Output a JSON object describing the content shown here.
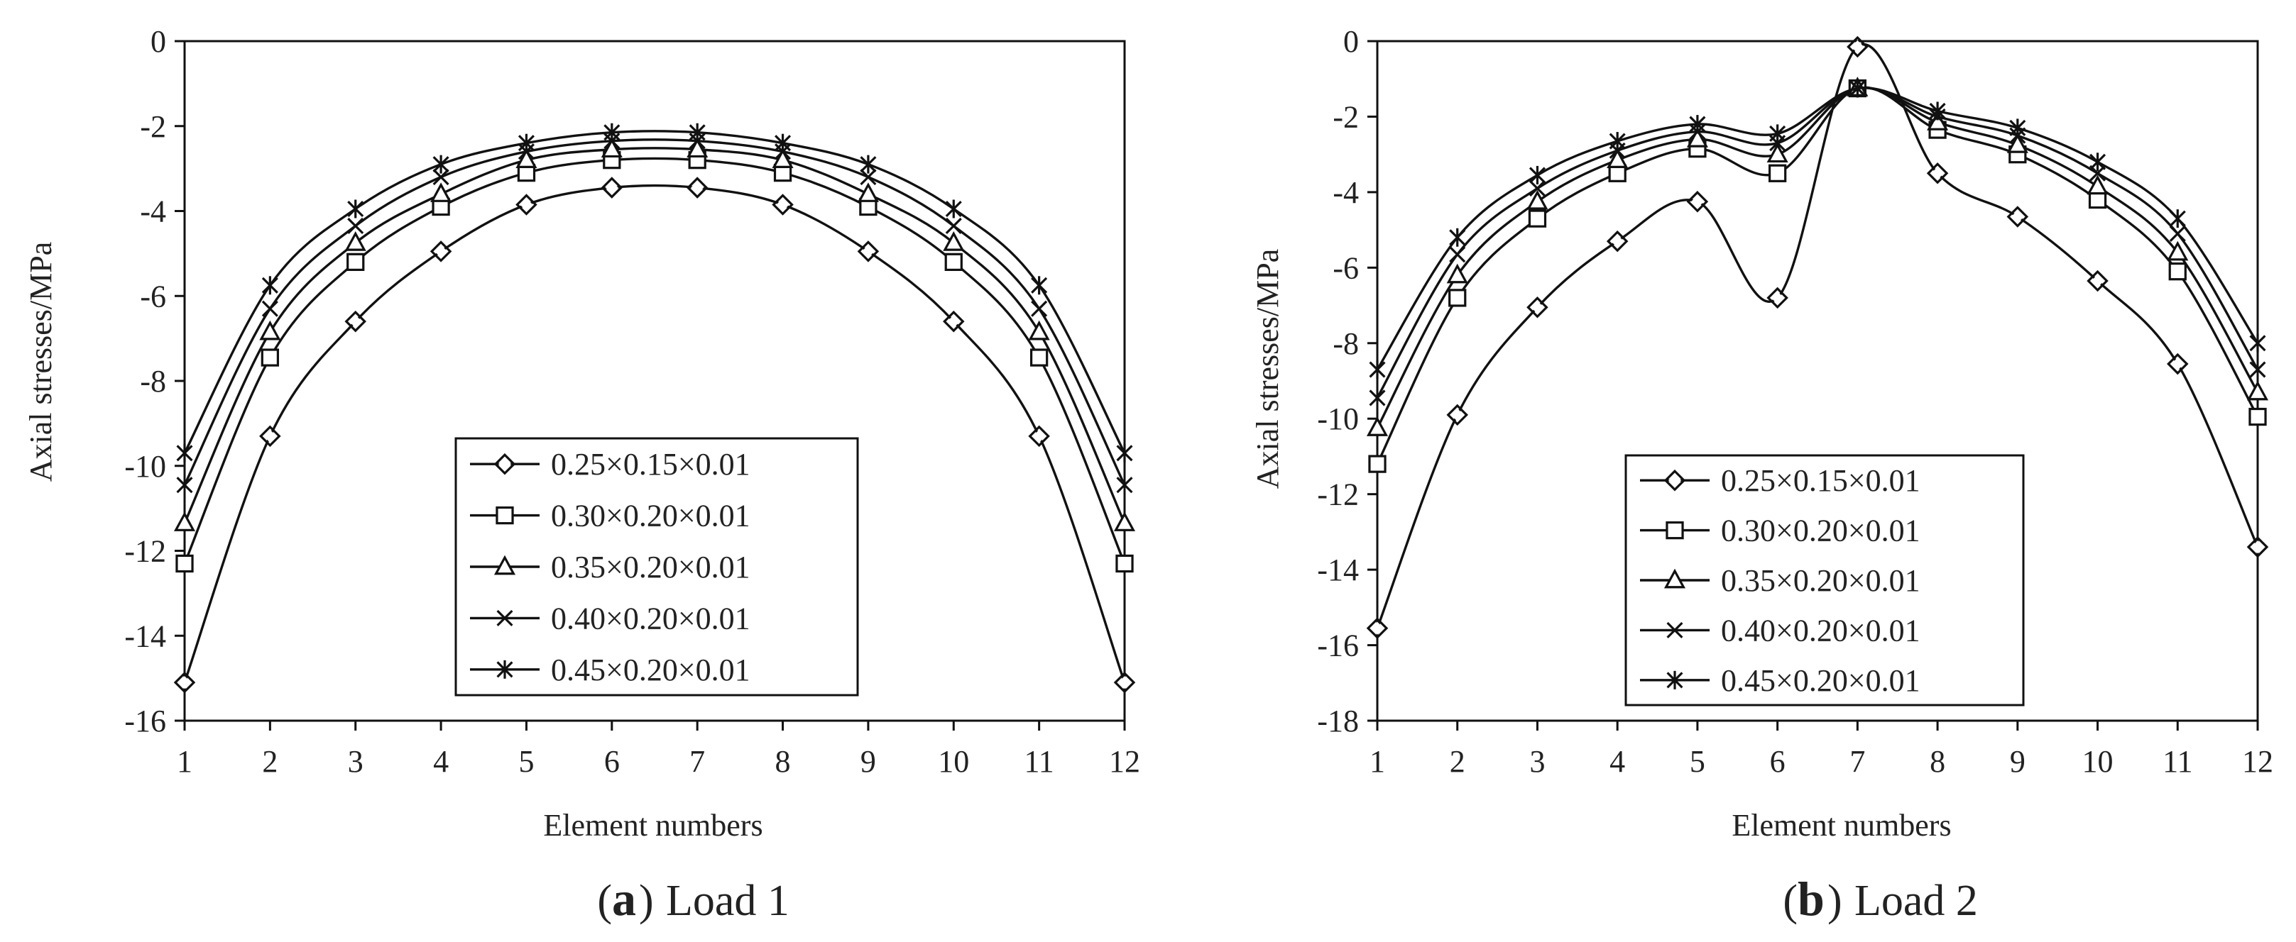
{
  "chart_data": [
    {
      "type": "line",
      "caption_letter": "a",
      "caption_text": "Load 1",
      "xlabel": "Element numbers",
      "ylabel": "Axial stresses/MPa",
      "x": [
        1,
        2,
        3,
        4,
        5,
        6,
        7,
        8,
        9,
        10,
        11,
        12
      ],
      "xticks": [
        "1",
        "2",
        "3",
        "4",
        "5",
        "6",
        "7",
        "8",
        "9",
        "10",
        "11",
        "12"
      ],
      "ylim": [
        -16,
        0
      ],
      "yticks": [
        "0",
        "-2",
        "-4",
        "-6",
        "-8",
        "-10",
        "-12",
        "-14",
        "-16"
      ],
      "legend_position": "bottom-center",
      "grid": false,
      "series": [
        {
          "name": "0.25×0.15×0.01",
          "marker": "diamond",
          "values": [
            -15.1,
            -9.3,
            -6.6,
            -4.95,
            -3.85,
            -3.45,
            -3.45,
            -3.85,
            -4.95,
            -6.6,
            -9.3,
            -15.1
          ]
        },
        {
          "name": "0.30×0.20×0.01",
          "marker": "square",
          "values": [
            -12.3,
            -7.45,
            -5.2,
            -3.9,
            -3.1,
            -2.8,
            -2.8,
            -3.1,
            -3.9,
            -5.2,
            -7.45,
            -12.3
          ]
        },
        {
          "name": "0.35×0.20×0.01",
          "marker": "triangle",
          "values": [
            -11.35,
            -6.85,
            -4.75,
            -3.6,
            -2.8,
            -2.55,
            -2.55,
            -2.8,
            -3.6,
            -4.75,
            -6.85,
            -11.35
          ]
        },
        {
          "name": "0.40×0.20×0.01",
          "marker": "x",
          "values": [
            -10.45,
            -6.3,
            -4.35,
            -3.2,
            -2.6,
            -2.35,
            -2.35,
            -2.6,
            -3.2,
            -4.35,
            -6.3,
            -10.45
          ]
        },
        {
          "name": "0.45×0.20×0.01",
          "marker": "asterisk",
          "values": [
            -9.7,
            -5.75,
            -3.95,
            -2.9,
            -2.4,
            -2.15,
            -2.15,
            -2.4,
            -2.9,
            -3.95,
            -5.75,
            -9.7
          ]
        }
      ]
    },
    {
      "type": "line",
      "caption_letter": "b",
      "caption_text": "Load 2",
      "xlabel": "Element numbers",
      "ylabel": "Axial stresses/MPa",
      "x": [
        1,
        2,
        3,
        4,
        5,
        6,
        7,
        8,
        9,
        10,
        11,
        12
      ],
      "xticks": [
        "1",
        "2",
        "3",
        "4",
        "5",
        "6",
        "7",
        "8",
        "9",
        "10",
        "11",
        "12"
      ],
      "ylim": [
        -18,
        0
      ],
      "yticks": [
        "0",
        "-2",
        "-4",
        "-6",
        "-8",
        "-10",
        "-12",
        "-14",
        "-16",
        "-18"
      ],
      "legend_position": "bottom-center",
      "grid": false,
      "series": [
        {
          "name": "0.25×0.15×0.01",
          "marker": "diamond",
          "values": [
            -15.55,
            -9.9,
            -7.05,
            -5.3,
            -4.25,
            -6.8,
            -0.15,
            -3.5,
            -4.65,
            -6.35,
            -8.55,
            -13.4
          ]
        },
        {
          "name": "0.30×0.20×0.01",
          "marker": "square",
          "values": [
            -11.2,
            -6.8,
            -4.7,
            -3.5,
            -2.85,
            -3.5,
            -1.25,
            -2.35,
            -3.0,
            -4.2,
            -6.1,
            -9.95
          ]
        },
        {
          "name": "0.35×0.20×0.01",
          "marker": "triangle",
          "values": [
            -10.25,
            -6.2,
            -4.25,
            -3.15,
            -2.6,
            -3.0,
            -1.25,
            -2.15,
            -2.75,
            -3.85,
            -5.6,
            -9.3
          ]
        },
        {
          "name": "0.40×0.20×0.01",
          "marker": "x",
          "values": [
            -9.45,
            -5.65,
            -3.9,
            -2.9,
            -2.4,
            -2.7,
            -1.25,
            -2.0,
            -2.5,
            -3.5,
            -5.1,
            -8.7
          ]
        },
        {
          "name": "0.45×0.20×0.01",
          "marker": "asterisk",
          "values": [
            -8.7,
            -5.2,
            -3.55,
            -2.65,
            -2.2,
            -2.45,
            -1.25,
            -1.85,
            -2.3,
            -3.2,
            -4.7,
            -8.0
          ]
        }
      ]
    }
  ]
}
